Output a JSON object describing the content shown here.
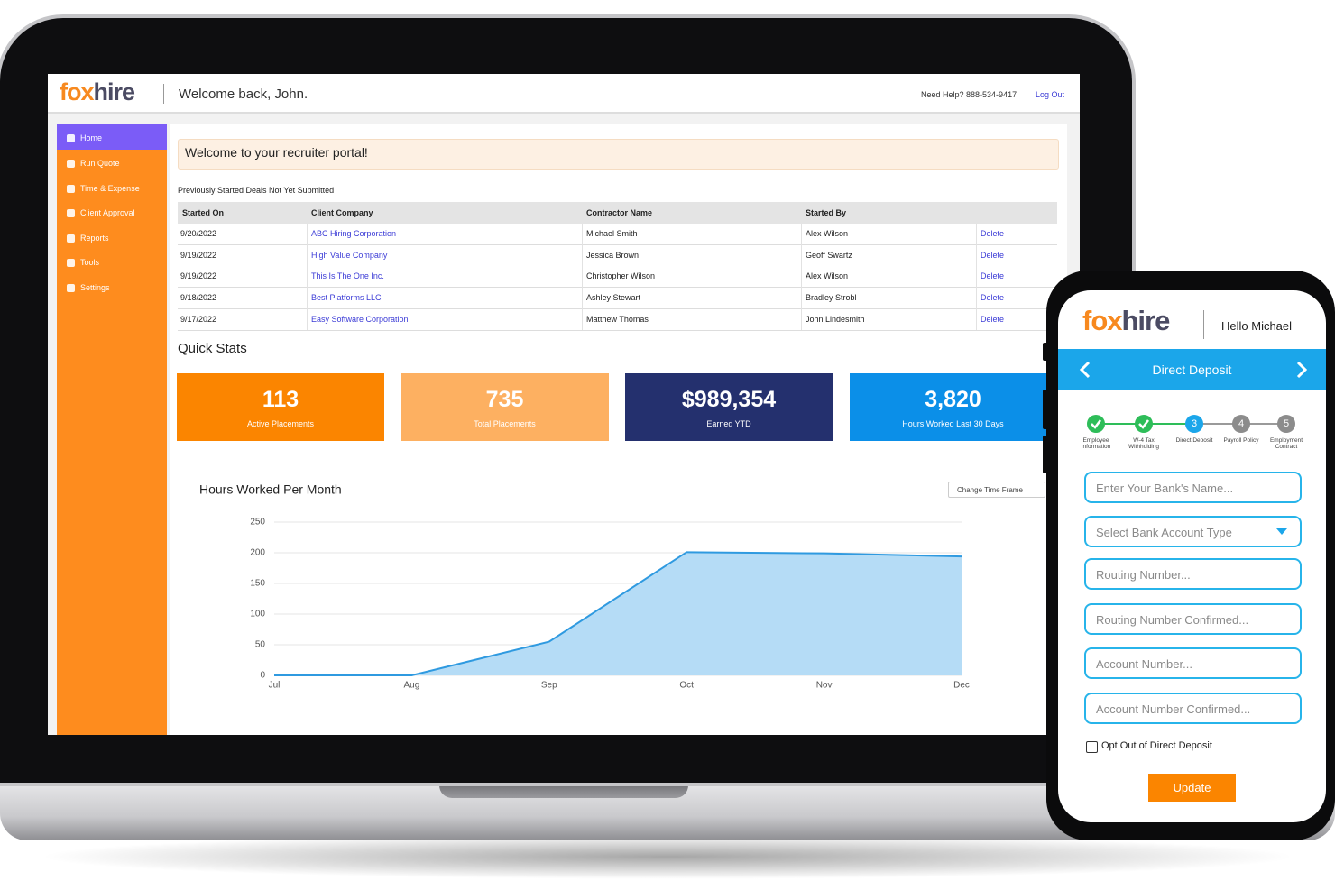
{
  "laptop": {
    "header": {
      "logo": [
        "fox",
        "hire"
      ],
      "welcome": "Welcome back, John.",
      "help": "Need Help? 888-534-9417",
      "logout": "Log Out"
    },
    "sidebar": [
      "Home",
      "Run Quote",
      "Time & Expense",
      "Client Approval",
      "Reports",
      "Tools",
      "Settings"
    ],
    "banner": "Welcome to your recruiter portal!",
    "table": {
      "caption": "Previously Started Deals Not Yet Submitted",
      "columns": [
        "Started On",
        "Client Company",
        "Contractor Name",
        "Started By"
      ],
      "rows": [
        [
          "9/20/2022",
          "ABC Hiring Corporation",
          "Michael Smith",
          "Alex Wilson",
          "Delete"
        ],
        [
          "9/19/2022",
          "High Value Company",
          "Jessica Brown",
          "Geoff Swartz",
          "Delete"
        ],
        [
          "9/19/2022",
          "This Is The One Inc.",
          "Christopher Wilson",
          "Alex Wilson",
          "Delete"
        ],
        [
          "9/18/2022",
          "Best Platforms LLC",
          "Ashley Stewart",
          "Bradley Strobl",
          "Delete"
        ],
        [
          "9/17/2022",
          "Easy Software Corporation",
          "Matthew Thomas",
          "John Lindesmith",
          "Delete"
        ]
      ]
    },
    "quick_stats": {
      "title": "Quick Stats",
      "cards": [
        {
          "value": "113",
          "label": "Active Placements",
          "color": "#fb8500"
        },
        {
          "value": "735",
          "label": "Total Placements",
          "color": "#fdb061"
        },
        {
          "value": "$989,354",
          "label": "Earned YTD",
          "color": "#24306e"
        },
        {
          "value": "3,820",
          "label": "Hours Worked Last 30 Days",
          "color": "#0b8fe8"
        }
      ]
    },
    "time_frame": "Change Time Frame"
  },
  "chart_data": {
    "type": "area",
    "title": "Hours Worked Per Month",
    "categories": [
      "Jul",
      "Aug",
      "Sep",
      "Oct",
      "Nov",
      "Dec"
    ],
    "values": [
      0,
      0,
      55,
      201,
      199,
      194
    ],
    "color": "#2f9ae0",
    "fill": "#b5dcf6",
    "ylim": [
      0,
      250
    ],
    "yticks": [
      0,
      50,
      100,
      150,
      200,
      250
    ],
    "grid": true
  },
  "phone": {
    "logo": [
      "fox",
      "hire"
    ],
    "greeting": "Hello Michael",
    "title": "Direct Deposit",
    "steps": [
      {
        "status": "done",
        "label": "Employee Information"
      },
      {
        "status": "done",
        "label": "W-4 Tax Withholding"
      },
      {
        "status": "current",
        "number": "3",
        "label": "Direct Deposit"
      },
      {
        "status": "todo",
        "number": "4",
        "label": "Payroll Policy"
      },
      {
        "status": "todo",
        "number": "5",
        "label": "Employment Contract"
      }
    ],
    "fields": [
      {
        "placeholder": "Enter Your Bank's Name..."
      },
      {
        "placeholder": "Select Bank Account Type",
        "select": true
      },
      {
        "placeholder": "Routing Number..."
      },
      {
        "placeholder": "Routing Number Confirmed..."
      },
      {
        "placeholder": "Account Number..."
      },
      {
        "placeholder": "Account Number Confirmed..."
      }
    ],
    "opt_out": "Opt Out of Direct Deposit",
    "button": "Update"
  }
}
